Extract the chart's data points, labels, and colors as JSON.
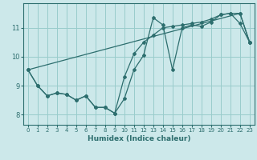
{
  "xlabel": "Humidex (Indice chaleur)",
  "bg_color": "#cce8ea",
  "grid_color": "#99cccc",
  "line_color": "#2d6e6e",
  "xlim": [
    -0.5,
    23.5
  ],
  "ylim": [
    7.65,
    11.85
  ],
  "xticks": [
    0,
    1,
    2,
    3,
    4,
    5,
    6,
    7,
    8,
    9,
    10,
    11,
    12,
    13,
    14,
    15,
    16,
    17,
    18,
    19,
    20,
    21,
    22,
    23
  ],
  "yticks": [
    8,
    9,
    10,
    11
  ],
  "line1_x": [
    0,
    1,
    2,
    3,
    4,
    5,
    6,
    7,
    8,
    9,
    10,
    11,
    12,
    13,
    14,
    15,
    16,
    17,
    18,
    19,
    20,
    21,
    22,
    23
  ],
  "line1_y": [
    9.55,
    9.0,
    8.65,
    8.75,
    8.7,
    8.5,
    8.65,
    8.25,
    8.25,
    8.05,
    8.55,
    9.55,
    10.05,
    11.35,
    11.1,
    9.55,
    11.0,
    11.1,
    11.05,
    11.2,
    11.45,
    11.5,
    11.15,
    10.5
  ],
  "line2_x": [
    0,
    1,
    2,
    3,
    4,
    5,
    6,
    7,
    8,
    9,
    10,
    11,
    12,
    13,
    14,
    15,
    16,
    17,
    18,
    19,
    20,
    21,
    22,
    23
  ],
  "line2_y": [
    9.55,
    9.0,
    8.65,
    8.75,
    8.7,
    8.5,
    8.65,
    8.25,
    8.25,
    8.05,
    9.3,
    10.1,
    10.5,
    10.75,
    11.0,
    11.05,
    11.1,
    11.15,
    11.2,
    11.3,
    11.45,
    11.5,
    11.5,
    10.5
  ],
  "line3_x": [
    0,
    22,
    23
  ],
  "line3_y": [
    9.55,
    11.5,
    10.5
  ]
}
